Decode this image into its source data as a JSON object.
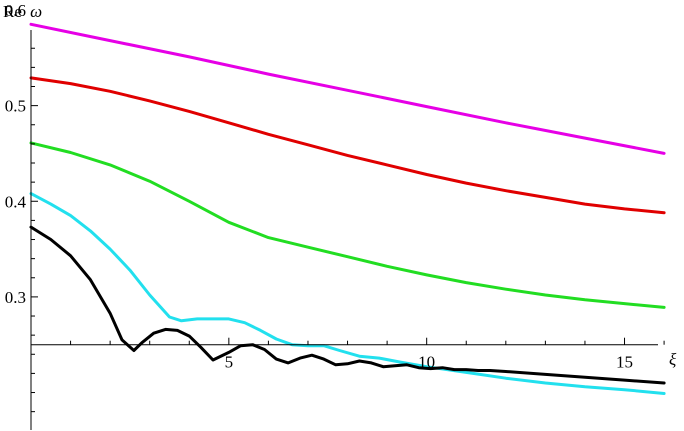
{
  "chart_data": {
    "type": "line",
    "xlabel": "ξ",
    "ylabel_prefix": "Re",
    "ylabel_var": "ω",
    "xlim": [
      0,
      16.2
    ],
    "ylim": [
      0.165,
      0.6
    ],
    "x_axis_at_y": 0.25,
    "x_ticks": [
      5,
      10,
      15
    ],
    "x_tick_labels": [
      "5",
      "10",
      "15"
    ],
    "y_ticks": [
      0.3,
      0.4,
      0.5,
      0.6
    ],
    "y_tick_labels": [
      "0.3",
      "0.4",
      "0.5",
      "0.6"
    ],
    "grid": false,
    "series": [
      {
        "color": "#e600e6",
        "x": [
          0,
          2,
          4,
          6,
          8,
          10,
          12,
          14,
          16
        ],
        "y": [
          0.585,
          0.568,
          0.551,
          0.533,
          0.516,
          0.499,
          0.482,
          0.466,
          0.45
        ]
      },
      {
        "color": "#e00000",
        "x": [
          0,
          1,
          2,
          3,
          4,
          5,
          6,
          7,
          8,
          9,
          10,
          11,
          12,
          13,
          14,
          15,
          16
        ],
        "y": [
          0.529,
          0.523,
          0.515,
          0.505,
          0.494,
          0.482,
          0.47,
          0.459,
          0.448,
          0.438,
          0.428,
          0.419,
          0.411,
          0.404,
          0.397,
          0.392,
          0.388
        ]
      },
      {
        "color": "#22dd22",
        "x": [
          0,
          1,
          2,
          3,
          4,
          5,
          6,
          7,
          8,
          9,
          10,
          11,
          12,
          13,
          14,
          15,
          16
        ],
        "y": [
          0.461,
          0.451,
          0.438,
          0.421,
          0.4,
          0.378,
          0.362,
          0.352,
          0.342,
          0.332,
          0.323,
          0.315,
          0.308,
          0.302,
          0.297,
          0.293,
          0.289
        ]
      },
      {
        "color": "#22e0ee",
        "x": [
          0,
          0.5,
          1,
          1.5,
          2,
          2.5,
          3,
          3.5,
          3.8,
          4.2,
          4.6,
          5.0,
          5.4,
          5.8,
          6.2,
          6.6,
          7.0,
          7.4,
          7.8,
          8.3,
          8.8,
          9.3,
          10,
          11,
          12,
          13,
          14,
          15,
          16
        ],
        "y": [
          0.408,
          0.397,
          0.385,
          0.369,
          0.35,
          0.328,
          0.302,
          0.279,
          0.275,
          0.277,
          0.277,
          0.277,
          0.273,
          0.265,
          0.256,
          0.25,
          0.249,
          0.249,
          0.244,
          0.238,
          0.236,
          0.232,
          0.227,
          0.221,
          0.215,
          0.21,
          0.206,
          0.203,
          0.199
        ]
      },
      {
        "color": "#000000",
        "x": [
          0,
          0.5,
          1,
          1.5,
          2,
          2.3,
          2.6,
          2.8,
          3.1,
          3.4,
          3.7,
          4.0,
          4.3,
          4.6,
          5.0,
          5.3,
          5.6,
          5.9,
          6.2,
          6.5,
          6.8,
          7.1,
          7.4,
          7.7,
          8.0,
          8.3,
          8.6,
          8.9,
          9.2,
          9.5,
          9.8,
          10.1,
          10.4,
          10.7,
          11.0,
          11.3,
          11.6,
          12,
          13,
          14,
          15,
          16
        ],
        "y": [
          0.373,
          0.36,
          0.343,
          0.318,
          0.283,
          0.255,
          0.244,
          0.252,
          0.262,
          0.266,
          0.265,
          0.259,
          0.247,
          0.234,
          0.242,
          0.249,
          0.25,
          0.245,
          0.235,
          0.231,
          0.236,
          0.239,
          0.235,
          0.229,
          0.23,
          0.233,
          0.231,
          0.227,
          0.228,
          0.229,
          0.226,
          0.225,
          0.226,
          0.224,
          0.224,
          0.223,
          0.223,
          0.222,
          0.219,
          0.216,
          0.213,
          0.21
        ]
      }
    ]
  }
}
